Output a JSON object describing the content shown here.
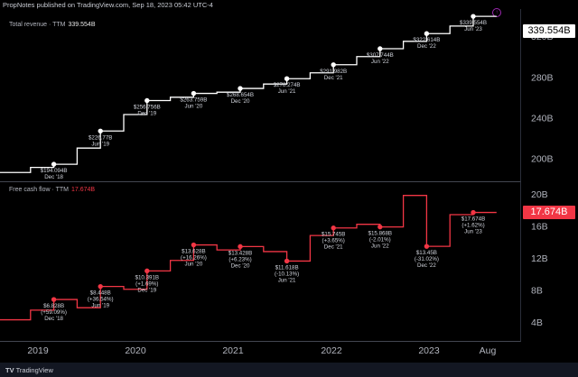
{
  "header": {
    "text": "PropNotes published on TradingView.com, Sep 18, 2023 05:42 UTC-4"
  },
  "pane1": {
    "title": "Total revenue · TTM",
    "value": "339.554B",
    "badge": "339.554B"
  },
  "pane2": {
    "title": "Free cash flow · TTM",
    "value": "17.674B",
    "badge": "17.674B"
  },
  "footer": {
    "logo_text": "TradingView"
  },
  "colors": {
    "revenue": "#ffffff",
    "fcf": "#f23645",
    "background": "#000000",
    "grid": "#2a2e39"
  },
  "chart_data": [
    {
      "type": "line",
      "title": "Total revenue · TTM",
      "x_ticks": [
        "2019",
        "2020",
        "2021",
        "2022",
        "2023",
        "Aug"
      ],
      "y_ticks": [
        "200B",
        "240B",
        "280B",
        "320B"
      ],
      "ylim": [
        180,
        345
      ],
      "x": [
        "Jun 18",
        "Sep 18",
        "Dec 18",
        "Mar 19",
        "Jun 19",
        "Sep 19",
        "Dec 19",
        "Mar 20",
        "Jun 20",
        "Sep 20",
        "Dec 20",
        "Mar 21",
        "Jun 21",
        "Sep 21",
        "Dec 21",
        "Mar 22",
        "Jun 22",
        "Sep 22",
        "Dec 22",
        "Mar 23",
        "Jun 23"
      ],
      "values": [
        186,
        191,
        194.094,
        210,
        226.77,
        243,
        256.756,
        260,
        263.759,
        265,
        268.654,
        273,
        278.274,
        284,
        291.982,
        300,
        307.744,
        315,
        322.614,
        330,
        339.554
      ],
      "labels": [
        {
          "i": 2,
          "lines": [
            "$194.094B",
            "Dec '18"
          ]
        },
        {
          "i": 4,
          "lines": [
            "$226.77B",
            "Jun '19"
          ]
        },
        {
          "i": 6,
          "lines": [
            "$256.756B",
            "Dec '19"
          ]
        },
        {
          "i": 8,
          "lines": [
            "$263.759B",
            "Jun '20"
          ]
        },
        {
          "i": 10,
          "lines": [
            "$268.654B",
            "Dec '20"
          ]
        },
        {
          "i": 12,
          "lines": [
            "$278.274B",
            "Jun '21"
          ]
        },
        {
          "i": 14,
          "lines": [
            "$291.982B",
            "Dec '21"
          ]
        },
        {
          "i": 16,
          "lines": [
            "$307.744B",
            "Jun '22"
          ]
        },
        {
          "i": 18,
          "lines": [
            "$322.614B",
            "Dec '22"
          ]
        },
        {
          "i": 20,
          "lines": [
            "$339.554B",
            "Jun '23"
          ]
        }
      ]
    },
    {
      "type": "line",
      "title": "Free cash flow · TTM",
      "x_ticks": [
        "2019",
        "2020",
        "2021",
        "2022",
        "2023",
        "Aug"
      ],
      "y_ticks": [
        "4B",
        "8B",
        "12B",
        "16B",
        "20B"
      ],
      "ylim": [
        2,
        21
      ],
      "x": [
        "Jun 18",
        "Sep 18",
        "Dec 18",
        "Mar 19",
        "Jun 19",
        "Sep 19",
        "Dec 19",
        "Mar 20",
        "Jun 20",
        "Sep 20",
        "Dec 20",
        "Mar 21",
        "Jun 21",
        "Sep 21",
        "Dec 21",
        "Mar 22",
        "Jun 22",
        "Sep 22",
        "Dec 22",
        "Mar 23",
        "Jun 23"
      ],
      "values": [
        4.3,
        5.5,
        6.828,
        5.8,
        8.448,
        8.1,
        10.391,
        11.7,
        13.628,
        13.0,
        13.428,
        12.8,
        11.618,
        14.8,
        15.745,
        16.2,
        15.868,
        19.8,
        13.45,
        17.4,
        17.674
      ],
      "labels": [
        {
          "i": 2,
          "lines": [
            "$6.828B",
            "(+59.09%)",
            "Dec '18"
          ]
        },
        {
          "i": 4,
          "lines": [
            "$8.448B",
            "(+36.54%)",
            "Jun '19"
          ]
        },
        {
          "i": 6,
          "lines": [
            "$10.391B",
            "(+1.69%)",
            "Dec '19"
          ]
        },
        {
          "i": 8,
          "lines": [
            "$13.628B",
            "(+16.26%)",
            "Jun '20"
          ]
        },
        {
          "i": 10,
          "lines": [
            "$13.428B",
            "(+6.23%)",
            "Dec '20"
          ]
        },
        {
          "i": 12,
          "lines": [
            "$11.618B",
            "(-10.13%)",
            "Jun '21"
          ]
        },
        {
          "i": 14,
          "lines": [
            "$15.745B",
            "(+3.65%)",
            "Dec '21"
          ]
        },
        {
          "i": 16,
          "lines": [
            "$15.868B",
            "(-2.01%)",
            "Jun '22"
          ]
        },
        {
          "i": 18,
          "lines": [
            "$13.45B",
            "(-31.02%)",
            "Dec '22"
          ]
        },
        {
          "i": 20,
          "lines": [
            "$17.674B",
            "(+1.62%)",
            "Jun '23"
          ]
        }
      ]
    }
  ]
}
